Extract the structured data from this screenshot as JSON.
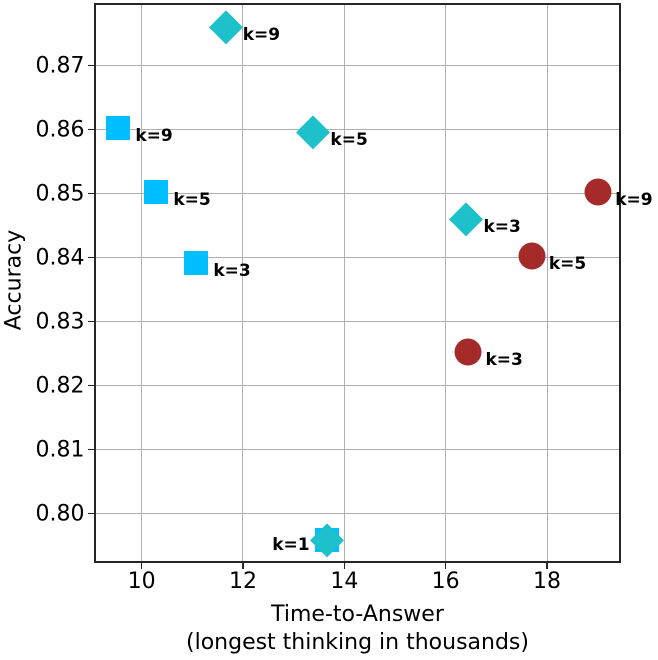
{
  "figure": {
    "background": "#ffffff",
    "spine_color": "#262626",
    "grid_color": "#b0b0b0",
    "text_color": "#000000"
  },
  "chart_data": {
    "type": "scatter",
    "title": "",
    "xlabel": "Time-to-Answer",
    "xlabel_sub": "(longest thinking in thousands)",
    "ylabel": "Accuracy",
    "xlim": [
      9.07,
      19.43
    ],
    "ylim": [
      0.7925,
      0.8797
    ],
    "xticks": [
      10,
      12,
      14,
      16,
      18
    ],
    "yticks": [
      0.8,
      0.81,
      0.82,
      0.83,
      0.84,
      0.85,
      0.86,
      0.87
    ],
    "grid": true,
    "legend_position": "none",
    "series": [
      {
        "name": "square-series",
        "marker": "square",
        "color": "#00BFFF",
        "points": [
          {
            "k": 1,
            "x": 13.65,
            "y": 0.7959,
            "label": "",
            "label_side": "none"
          },
          {
            "k": 3,
            "x": 11.08,
            "y": 0.8392,
            "label": "k=3",
            "label_side": "right"
          },
          {
            "k": 5,
            "x": 10.29,
            "y": 0.8502,
            "label": "k=5",
            "label_side": "right"
          },
          {
            "k": 9,
            "x": 9.54,
            "y": 0.8603,
            "label": "k=9",
            "label_side": "right"
          }
        ]
      },
      {
        "name": "diamond-series",
        "marker": "diamond",
        "color": "#1DC0CB",
        "points": [
          {
            "k": 1,
            "x": 13.65,
            "y": 0.7959,
            "label": "k=1",
            "label_side": "left"
          },
          {
            "k": 3,
            "x": 16.41,
            "y": 0.846,
            "label": "k=3",
            "label_side": "right"
          },
          {
            "k": 5,
            "x": 13.39,
            "y": 0.8596,
            "label": "k=5",
            "label_side": "right"
          },
          {
            "k": 9,
            "x": 11.66,
            "y": 0.8761,
            "label": "k=9",
            "label_side": "right"
          }
        ]
      },
      {
        "name": "circle-series",
        "marker": "circle",
        "color": "#A52A2A",
        "points": [
          {
            "k": 3,
            "x": 16.45,
            "y": 0.8252,
            "label": "k=3",
            "label_side": "right"
          },
          {
            "k": 5,
            "x": 17.7,
            "y": 0.8402,
            "label": "k=5",
            "label_side": "right"
          },
          {
            "k": 9,
            "x": 19.01,
            "y": 0.8502,
            "label": "k=9",
            "label_side": "right"
          }
        ]
      }
    ]
  }
}
